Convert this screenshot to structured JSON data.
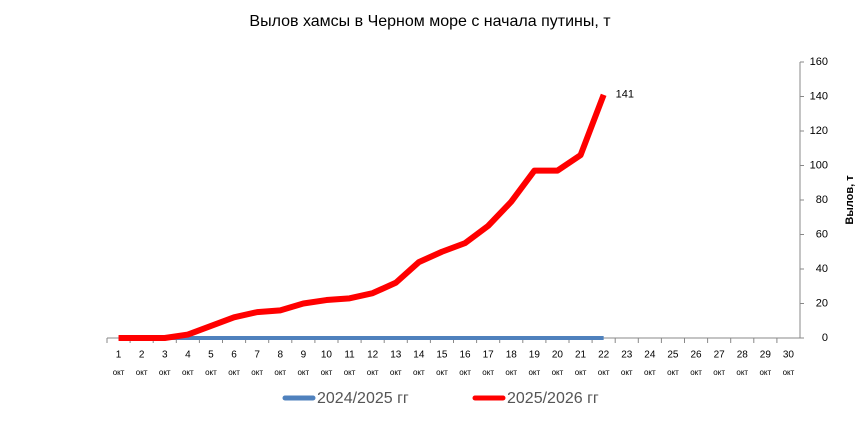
{
  "chart_data": {
    "type": "line",
    "title": "Вылов хамсы в Черном море с начала путины, т",
    "y_axis_label": "Вылов, т",
    "categories": [
      [
        "1",
        "окт"
      ],
      [
        "2",
        "окт"
      ],
      [
        "3",
        "окт"
      ],
      [
        "4",
        "окт"
      ],
      [
        "5",
        "окт"
      ],
      [
        "6",
        "окт"
      ],
      [
        "7",
        "окт"
      ],
      [
        "8",
        "окт"
      ],
      [
        "9",
        "окт"
      ],
      [
        "10",
        "окт"
      ],
      [
        "11",
        "окт"
      ],
      [
        "12",
        "окт"
      ],
      [
        "13",
        "окт"
      ],
      [
        "14",
        "окт"
      ],
      [
        "15",
        "окт"
      ],
      [
        "16",
        "окт"
      ],
      [
        "17",
        "окт"
      ],
      [
        "18",
        "окт"
      ],
      [
        "19",
        "окт"
      ],
      [
        "20",
        "окт"
      ],
      [
        "21",
        "окт"
      ],
      [
        "22",
        "окт"
      ],
      [
        "23",
        "окт"
      ],
      [
        "24",
        "окт"
      ],
      [
        "25",
        "окт"
      ],
      [
        "26",
        "окт"
      ],
      [
        "27",
        "окт"
      ],
      [
        "28",
        "окт"
      ],
      [
        "29",
        "окт"
      ],
      [
        "30",
        "окт"
      ]
    ],
    "series": [
      {
        "name": "2024/2025 гг",
        "color": "#4f81bd",
        "values": [
          0,
          0,
          0,
          0,
          0,
          0,
          0,
          0,
          0,
          0,
          0,
          0,
          0,
          0,
          0,
          0,
          0,
          0,
          0,
          0,
          0,
          0,
          null,
          null,
          null,
          null,
          null,
          null,
          null,
          null
        ]
      },
      {
        "name": "2025/2026 гг",
        "color": "#ff0000",
        "values": [
          0,
          0,
          0,
          2,
          7,
          12,
          15,
          16,
          20,
          22,
          23,
          26,
          32,
          44,
          50,
          55,
          65,
          79,
          97,
          97,
          106,
          141,
          null,
          null,
          null,
          null,
          null,
          null,
          null,
          null
        ]
      }
    ],
    "ylim": [
      0,
      160
    ],
    "yticks": [
      0,
      20,
      40,
      60,
      80,
      100,
      120,
      140,
      160
    ]
  }
}
